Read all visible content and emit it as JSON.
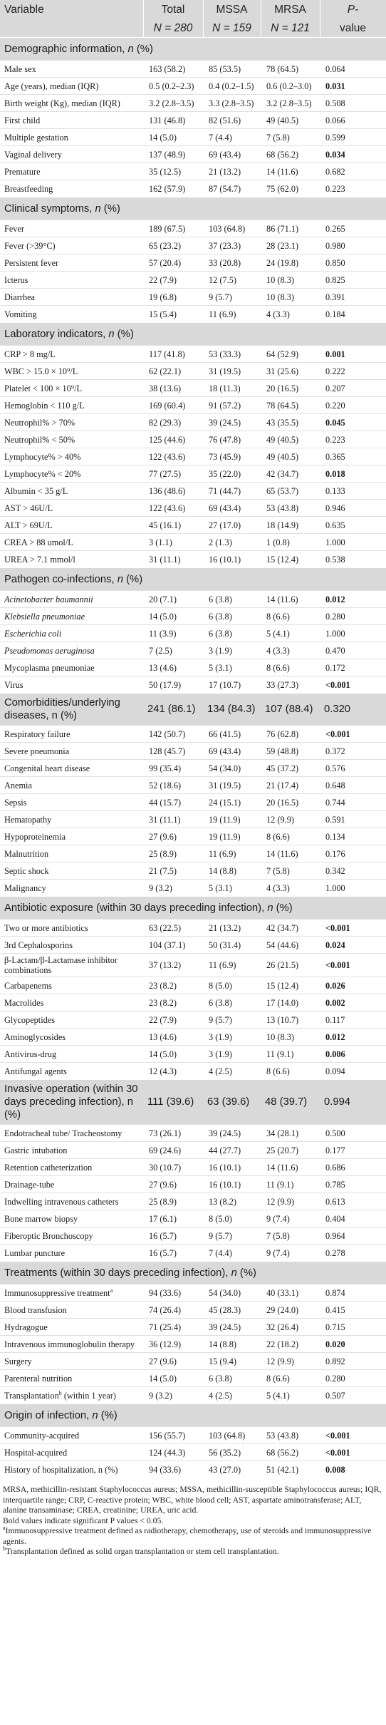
{
  "header": {
    "variable": "Variable",
    "total": "Total",
    "mssa": "MSSA",
    "mrsa": "MRSA",
    "pvalue_line1": "P-",
    "pvalue_line2": "value",
    "n_total": "N = 280",
    "n_mssa": "N = 159",
    "n_mrsa": "N = 121"
  },
  "rows": [
    {
      "type": "section",
      "label": "Demographic information, ",
      "n": "n",
      "tail": " (%)"
    },
    {
      "name": "Male sex",
      "total": "163 (58.2)",
      "mssa": "85 (53.5)",
      "mrsa": "78 (64.5)",
      "p": "0.064",
      "bold": false
    },
    {
      "name": "Age (years), median (IQR)",
      "total": "0.5 (0.2–2.3)",
      "mssa": "0.4 (0.2–1.5)",
      "mrsa": "0.6 (0.2–3.0)",
      "p": "0.031",
      "bold": true
    },
    {
      "name": "Birth weight (Kg), median (IQR)",
      "total": "3.2 (2.8–3.5)",
      "mssa": "3.3 (2.8–3.5)",
      "mrsa": "3.2 (2.8–3.5)",
      "p": "0.508",
      "bold": false,
      "tall": true
    },
    {
      "name": "First child",
      "total": "131 (46.8)",
      "mssa": "82 (51.6)",
      "mrsa": "49 (40.5)",
      "p": "0.066",
      "bold": false
    },
    {
      "name": "Multiple gestation",
      "total": "14 (5.0)",
      "mssa": "7 (4.4)",
      "mrsa": "7 (5.8)",
      "p": "0.599",
      "bold": false
    },
    {
      "name": "Vaginal delivery",
      "total": "137 (48.9)",
      "mssa": "69 (43.4)",
      "mrsa": "68 (56.2)",
      "p": "0.034",
      "bold": true
    },
    {
      "name": "Premature",
      "total": "35 (12.5)",
      "mssa": "21 (13.2)",
      "mrsa": "14 (11.6)",
      "p": "0.682",
      "bold": false
    },
    {
      "name": "Breastfeeding",
      "total": "162 (57.9)",
      "mssa": "87 (54.7)",
      "mrsa": "75 (62.0)",
      "p": "0.223",
      "bold": false
    },
    {
      "type": "section",
      "label": "Clinical symptoms, ",
      "n": "n",
      "tail": " (%)"
    },
    {
      "name": "Fever",
      "total": "189 (67.5)",
      "mssa": "103 (64.8)",
      "mrsa": "86 (71.1)",
      "p": "0.265",
      "bold": false
    },
    {
      "name": "Fever (>39°C)",
      "total": "65 (23.2)",
      "mssa": "37 (23.3)",
      "mrsa": "28 (23.1)",
      "p": "0.980",
      "bold": false
    },
    {
      "name": "Persistent fever",
      "total": "57 (20.4)",
      "mssa": "33 (20.8)",
      "mrsa": "24 (19.8)",
      "p": "0.850",
      "bold": false
    },
    {
      "name": "Icterus",
      "total": "22 (7.9)",
      "mssa": "12 (7.5)",
      "mrsa": "10 (8.3)",
      "p": "0.825",
      "bold": false
    },
    {
      "name": "Diarrhea",
      "total": "19 (6.8)",
      "mssa": "9 (5.7)",
      "mrsa": "10 (8.3)",
      "p": "0.391",
      "bold": false
    },
    {
      "name": "Vomiting",
      "total": "15 (5.4)",
      "mssa": "11 (6.9)",
      "mrsa": "4 (3.3)",
      "p": "0.184",
      "bold": false
    },
    {
      "type": "section",
      "label": "Laboratory indicators, ",
      "n": "n",
      "tail": " (%)"
    },
    {
      "name": "CRP > 8 mg/L",
      "total": "117 (41.8)",
      "mssa": "53 (33.3)",
      "mrsa": "64 (52.9)",
      "p": "0.001",
      "bold": true
    },
    {
      "name": "WBC > 15.0 × 10⁹/L",
      "total": "62 (22.1)",
      "mssa": "31 (19.5)",
      "mrsa": "31 (25.6)",
      "p": "0.222",
      "bold": false
    },
    {
      "name": "Platelet < 100 × 10⁹/L",
      "total": "38 (13.6)",
      "mssa": "18 (11.3)",
      "mrsa": "20 (16.5)",
      "p": "0.207",
      "bold": false
    },
    {
      "name": "Hemoglobin < 110 g/L",
      "total": "169 (60.4)",
      "mssa": "91 (57.2)",
      "mrsa": "78 (64.5)",
      "p": "0.220",
      "bold": false
    },
    {
      "name": "Neutrophil% > 70%",
      "total": "82 (29.3)",
      "mssa": "39 (24.5)",
      "mrsa": "43 (35.5)",
      "p": "0.045",
      "bold": true
    },
    {
      "name": "Neutrophil% < 50%",
      "total": "125 (44.6)",
      "mssa": "76 (47.8)",
      "mrsa": "49 (40.5)",
      "p": "0.223",
      "bold": false
    },
    {
      "name": "Lymphocyte% > 40%",
      "total": "122 (43.6)",
      "mssa": "73 (45.9)",
      "mrsa": "49 (40.5)",
      "p": "0.365",
      "bold": false
    },
    {
      "name": "Lymphocyte% < 20%",
      "total": "77 (27.5)",
      "mssa": "35 (22.0)",
      "mrsa": "42 (34.7)",
      "p": "0.018",
      "bold": true
    },
    {
      "name": "Albumin < 35 g/L",
      "total": "136 (48.6)",
      "mssa": "71 (44.7)",
      "mrsa": "65 (53.7)",
      "p": "0.133",
      "bold": false
    },
    {
      "name": "AST > 46U/L",
      "total": "122 (43.6)",
      "mssa": "69 (43.4)",
      "mrsa": "53 (43.8)",
      "p": "0.946",
      "bold": false
    },
    {
      "name": "ALT > 69U/L",
      "total": "45 (16.1)",
      "mssa": "27 (17.0)",
      "mrsa": "18 (14.9)",
      "p": "0.635",
      "bold": false
    },
    {
      "name": "CREA > 88 umol/L",
      "total": "3 (1.1)",
      "mssa": "2 (1.3)",
      "mrsa": "1 (0.8)",
      "p": "1.000",
      "bold": false
    },
    {
      "name": "UREA > 7.1 mmol/l",
      "total": "31 (11.1)",
      "mssa": "16 (10.1)",
      "mrsa": "15 (12.4)",
      "p": "0.538",
      "bold": false
    },
    {
      "type": "section",
      "label": "Pathogen co-infections, ",
      "n": "n",
      "tail": " (%)"
    },
    {
      "name": "Acinetobacter baumannii",
      "italic": true,
      "total": "20 (7.1)",
      "mssa": "6 (3.8)",
      "mrsa": "14 (11.6)",
      "p": "0.012",
      "bold": true
    },
    {
      "name": "Klebsiella pneumoniae",
      "italic": true,
      "total": "14 (5.0)",
      "mssa": "6 (3.8)",
      "mrsa": "8 (6.6)",
      "p": "0.280",
      "bold": false
    },
    {
      "name": "Escherichia coli",
      "italic": true,
      "total": "11 (3.9)",
      "mssa": "6 (3.8)",
      "mrsa": "5 (4.1)",
      "p": "1.000",
      "bold": false
    },
    {
      "name": "Pseudomonas aeruginosa",
      "italic": true,
      "total": "7 (2.5)",
      "mssa": "3 (1.9)",
      "mrsa": "4 (3.3)",
      "p": "0.470",
      "bold": false
    },
    {
      "name": "Mycoplasma pneumoniae",
      "total": "13 (4.6)",
      "mssa": "5 (3.1)",
      "mrsa": "8 (6.6)",
      "p": "0.172",
      "bold": false
    },
    {
      "name": "Virus",
      "total": "50 (17.9)",
      "mssa": "17 (10.7)",
      "mrsa": "33 (27.3)",
      "p": "<0.001",
      "bold": true
    },
    {
      "type": "sectionbig",
      "name": "Comorbidities/underlying diseases, n (%)",
      "total": "241 (86.1)",
      "mssa": "134 (84.3)",
      "mrsa": "107 (88.4)",
      "p": "0.320"
    },
    {
      "name": "Respiratory failure",
      "total": "142 (50.7)",
      "mssa": "66 (41.5)",
      "mrsa": "76 (62.8)",
      "p": "<0.001",
      "bold": true
    },
    {
      "name": "Severe pneumonia",
      "total": "128 (45.7)",
      "mssa": "69 (43.4)",
      "mrsa": "59 (48.8)",
      "p": "0.372",
      "bold": false
    },
    {
      "name": "Congenital heart disease",
      "total": "99 (35.4)",
      "mssa": "54 (34.0)",
      "mrsa": "45 (37.2)",
      "p": "0.576",
      "bold": false
    },
    {
      "name": "Anemia",
      "total": "52 (18.6)",
      "mssa": "31 (19.5)",
      "mrsa": "21 (17.4)",
      "p": "0.648",
      "bold": false
    },
    {
      "name": "Sepsis",
      "total": "44 (15.7)",
      "mssa": "24 (15.1)",
      "mrsa": "20 (16.5)",
      "p": "0.744",
      "bold": false
    },
    {
      "name": "Hematopathy",
      "total": "31 (11.1)",
      "mssa": "19 (11.9)",
      "mrsa": "12 (9.9)",
      "p": "0.591",
      "bold": false
    },
    {
      "name": "Hypoproteinemia",
      "total": "27 (9.6)",
      "mssa": "19 (11.9)",
      "mrsa": "8 (6.6)",
      "p": "0.134",
      "bold": false
    },
    {
      "name": "Malnutrition",
      "total": "25 (8.9)",
      "mssa": "11 (6.9)",
      "mrsa": "14 (11.6)",
      "p": "0.176",
      "bold": false
    },
    {
      "name": "Septic shock",
      "total": "21 (7.5)",
      "mssa": "14 (8.8)",
      "mrsa": "7 (5.8)",
      "p": "0.342",
      "bold": false
    },
    {
      "name": "Malignancy",
      "total": "9 (3.2)",
      "mssa": "5 (3.1)",
      "mrsa": "4 (3.3)",
      "p": "1.000",
      "bold": false
    },
    {
      "type": "section",
      "label": "Antibiotic exposure (within 30 days preceding infection), ",
      "n": "n",
      "tail": " (%)"
    },
    {
      "name": "Two or more antibiotics",
      "total": "63 (22.5)",
      "mssa": "21 (13.2)",
      "mrsa": "42 (34.7)",
      "p": "<0.001",
      "bold": true
    },
    {
      "name": "3rd Cephalosporins",
      "total": "104 (37.1)",
      "mssa": "50 (31.4)",
      "mrsa": "54 (44.6)",
      "p": "0.024",
      "bold": true
    },
    {
      "name": "β-Lactam/β-Lactamase inhibitor combinations",
      "total": "37 (13.2)",
      "mssa": "11 (6.9)",
      "mrsa": "26 (21.5)",
      "p": "<0.001",
      "bold": true,
      "tall": true
    },
    {
      "name": "Carbapenems",
      "total": "23 (8.2)",
      "mssa": "8 (5.0)",
      "mrsa": "15 (12.4)",
      "p": "0.026",
      "bold": true
    },
    {
      "name": "Macrolides",
      "total": "23 (8.2)",
      "mssa": "6 (3.8)",
      "mrsa": "17 (14.0)",
      "p": "0.002",
      "bold": true
    },
    {
      "name": "Glycopeptides",
      "total": "22 (7.9)",
      "mssa": "9 (5.7)",
      "mrsa": "13 (10.7)",
      "p": "0.117",
      "bold": false
    },
    {
      "name": "Aminoglycosides",
      "total": "13 (4.6)",
      "mssa": "3 (1.9)",
      "mrsa": "10 (8.3)",
      "p": "0.012",
      "bold": true
    },
    {
      "name": "Antivirus-drug",
      "total": "14 (5.0)",
      "mssa": "3 (1.9)",
      "mrsa": "11 (9.1)",
      "p": "0.006",
      "bold": true
    },
    {
      "name": "Antifungal agents",
      "total": "12 (4.3)",
      "mssa": "4 (2.5)",
      "mrsa": "8 (6.6)",
      "p": "0.094",
      "bold": false
    },
    {
      "type": "sectionbig",
      "name": "Invasive operation (within 30 days preceding infection), n (%)",
      "total": "111 (39.6)",
      "mssa": "63 (39.6)",
      "mrsa": "48 (39.7)",
      "p": "0.994"
    },
    {
      "name": "Endotracheal tube/ Tracheostomy",
      "total": "73 (26.1)",
      "mssa": "39 (24.5)",
      "mrsa": "34 (28.1)",
      "p": "0.500",
      "bold": false,
      "tall": true
    },
    {
      "name": "Gastric intubation",
      "total": "69 (24.6)",
      "mssa": "44 (27.7)",
      "mrsa": "25 (20.7)",
      "p": "0.177",
      "bold": false
    },
    {
      "name": "Retention catheterization",
      "total": "30 (10.7)",
      "mssa": "16 (10.1)",
      "mrsa": "14 (11.6)",
      "p": "0.686",
      "bold": false
    },
    {
      "name": "Drainage-tube",
      "total": "27 (9.6)",
      "mssa": "16 (10.1)",
      "mrsa": "11 (9.1)",
      "p": "0.785",
      "bold": false
    },
    {
      "name": "Indwelling intravenous catheters",
      "total": "25 (8.9)",
      "mssa": "13 (8.2)",
      "mrsa": "12 (9.9)",
      "p": "0.613",
      "bold": false
    },
    {
      "name": "Bone marrow biopsy",
      "total": "17 (6.1)",
      "mssa": "8 (5.0)",
      "mrsa": "9 (7.4)",
      "p": "0.404",
      "bold": false
    },
    {
      "name": "Fiberoptic Bronchoscopy",
      "total": "16 (5.7)",
      "mssa": "9 (5.7)",
      "mrsa": "7 (5.8)",
      "p": "0.964",
      "bold": false
    },
    {
      "name": "Lumbar puncture",
      "total": "16 (5.7)",
      "mssa": "7 (4.4)",
      "mrsa": "9 (7.4)",
      "p": "0.278",
      "bold": false
    },
    {
      "type": "section",
      "label": "Treatments (within 30 days preceding infection), ",
      "n": "n",
      "tail": " (%)"
    },
    {
      "name": "Immunosuppressive treatment",
      "sup": "a",
      "total": "94 (33.6)",
      "mssa": "54 (34.0)",
      "mrsa": "40 (33.1)",
      "p": "0.874",
      "bold": false
    },
    {
      "name": "Blood transfusion",
      "total": "74 (26.4)",
      "mssa": "45 (28.3)",
      "mrsa": "29 (24.0)",
      "p": "0.415",
      "bold": false
    },
    {
      "name": "Hydragogue",
      "total": "71 (25.4)",
      "mssa": "39 (24.5)",
      "mrsa": "32 (26.4)",
      "p": "0.715",
      "bold": false
    },
    {
      "name": "Intravenous immunoglobulin therapy",
      "total": "36 (12.9)",
      "mssa": "14 (8.8)",
      "mrsa": "22 (18.2)",
      "p": "0.020",
      "bold": true,
      "tall": true
    },
    {
      "name": "Surgery",
      "total": "27 (9.6)",
      "mssa": "15 (9.4)",
      "mrsa": "12 (9.9)",
      "p": "0.892",
      "bold": false
    },
    {
      "name": "Parenteral nutrition",
      "total": "14 (5.0)",
      "mssa": "6 (3.8)",
      "mrsa": "8 (6.6)",
      "p": "0.280",
      "bold": false
    },
    {
      "name": "Transplantation",
      "sup": "b",
      "suffix": " (within 1 year)",
      "total": "9 (3.2)",
      "mssa": "4 (2.5)",
      "mrsa": "5 (4.1)",
      "p": "0.507",
      "bold": false
    },
    {
      "type": "section",
      "label": "Origin of infection, ",
      "n": "n",
      "tail": " (%)"
    },
    {
      "name": "Community-acquired",
      "total": "156 (55.7)",
      "mssa": "103 (64.8)",
      "mrsa": "53 (43.8)",
      "p": "<0.001",
      "bold": true
    },
    {
      "name": "Hospital-acquired",
      "total": "124 (44.3)",
      "mssa": "56 (35.2)",
      "mrsa": "68 (56.2)",
      "p": "<0.001",
      "bold": true
    },
    {
      "name": "History of hospitalization, n (%)",
      "total": "94 (33.6)",
      "mssa": "43 (27.0)",
      "mrsa": "51 (42.1)",
      "p": "0.008",
      "bold": true
    }
  ],
  "footnotes": {
    "abbrev": "MRSA, methicillin-resistant Staphylococcus aureus; MSSA, methicillin-susceptible Staphylococcus aureus; IQR, interquartile range; CRP, C-reactive protein; WBC, white blood cell; AST, aspartate aminotransferase; ALT, alanine transaminase; CREA, creatinine; UREA, uric acid.",
    "bold_note": "Bold values indicate significant P values < 0.05.",
    "a_mark": "a",
    "a_text": "Immunosuppressive treatment defined as radiotherapy, chemotherapy, use of steroids and immunosuppressive agents.",
    "b_mark": "b",
    "b_text": "Transplantation defined as solid organ transplantation or stem cell transplantation."
  },
  "colors": {
    "header_bg": "#d9d9d9",
    "rule": "#e0e0e0"
  }
}
